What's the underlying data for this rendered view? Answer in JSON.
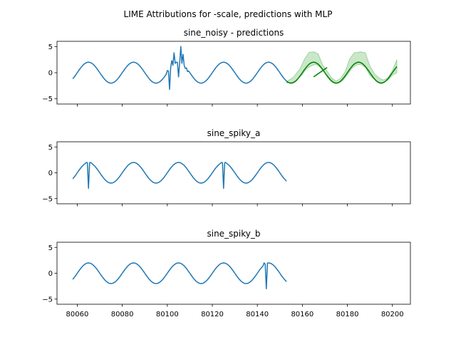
{
  "figure": {
    "suptitle": "LIME Attributions for -scale, predictions with MLP"
  },
  "colors": {
    "history": "#1f77b4",
    "prediction": "#008000",
    "band": "#2ca02c"
  },
  "chart_data": [
    {
      "type": "line",
      "title": "sine_noisy - predictions",
      "xlabel": "",
      "ylabel": "",
      "xlim": [
        80051,
        80208
      ],
      "ylim": [
        -6,
        6
      ],
      "yticks": [
        -5,
        0,
        5
      ],
      "xticks": [
        80060,
        80080,
        80100,
        80120,
        80140,
        80160,
        80180,
        80200
      ],
      "show_x_tick_labels": false,
      "grid": false,
      "series": [
        {
          "role": "history",
          "x_start": 80058,
          "x_end": 80153,
          "amplitude": 2,
          "period": 20,
          "phase_offset_x": 80060,
          "points": [
            [
              80100,
              0.4
            ],
            [
              80101,
              -3.2
            ],
            [
              80102,
              2.3
            ],
            [
              80103,
              3.8
            ],
            [
              80104,
              2.0
            ],
            [
              80105,
              -0.8
            ],
            [
              80106,
              5.0
            ],
            [
              80107,
              3.5
            ],
            [
              80108,
              0.8
            ],
            [
              80109,
              0.2
            ]
          ]
        },
        {
          "role": "prediction",
          "x_start": 80153,
          "x_end": 80202,
          "amplitude": 2,
          "period": 20,
          "phase_offset_x": 80060,
          "extra_segment": [
            [
              80165,
              -0.8
            ],
            [
              80171,
              1.0
            ]
          ]
        },
        {
          "role": "band",
          "x_start": 80153,
          "x_end": 80202,
          "upper": [
            [
              80153,
              -1.7
            ],
            [
              80156,
              -0.9
            ],
            [
              80159,
              0.8
            ],
            [
              80161,
              2.6
            ],
            [
              80163,
              3.9
            ],
            [
              80165,
              4.0
            ],
            [
              80167,
              3.6
            ],
            [
              80169,
              1.5
            ],
            [
              80171,
              0.3
            ],
            [
              80173,
              -1.0
            ],
            [
              80175,
              -1.6
            ],
            [
              80177,
              -1.1
            ],
            [
              80179,
              0.2
            ],
            [
              80181,
              2.6
            ],
            [
              80183,
              3.8
            ],
            [
              80186,
              4.0
            ],
            [
              80188,
              3.8
            ],
            [
              80190,
              1.3
            ],
            [
              80192,
              -0.2
            ],
            [
              80194,
              -1.0
            ],
            [
              80196,
              -1.4
            ],
            [
              80198,
              -1.0
            ],
            [
              80200,
              0.4
            ],
            [
              80202,
              2.5
            ]
          ],
          "lower": [
            [
              80202,
              0.0
            ],
            [
              80200,
              -0.5
            ],
            [
              80198,
              -1.4
            ],
            [
              80196,
              -1.9
            ],
            [
              80194,
              -1.8
            ],
            [
              80192,
              -1.3
            ],
            [
              80190,
              -0.5
            ],
            [
              80188,
              1.0
            ],
            [
              80186,
              1.6
            ],
            [
              80184,
              1.5
            ],
            [
              80182,
              0.8
            ],
            [
              80180,
              -0.4
            ],
            [
              80178,
              -1.5
            ],
            [
              80176,
              -2.0
            ],
            [
              80174,
              -1.8
            ],
            [
              80172,
              -1.0
            ],
            [
              80170,
              0.0
            ],
            [
              80168,
              1.0
            ],
            [
              80166,
              1.6
            ],
            [
              80164,
              1.3
            ],
            [
              80162,
              0.8
            ],
            [
              80160,
              -0.3
            ],
            [
              80158,
              -1.2
            ],
            [
              80156,
              -1.8
            ],
            [
              80153,
              -2.0
            ]
          ]
        }
      ]
    },
    {
      "type": "line",
      "title": "sine_spiky_a",
      "xlabel": "",
      "ylabel": "",
      "xlim": [
        80051,
        80208
      ],
      "ylim": [
        -6,
        6
      ],
      "yticks": [
        -5,
        0,
        5
      ],
      "xticks": [
        80060,
        80080,
        80100,
        80120,
        80140,
        80160,
        80180,
        80200
      ],
      "show_x_tick_labels": false,
      "grid": false,
      "series": [
        {
          "role": "history",
          "x_start": 80058,
          "x_end": 80153,
          "amplitude": 2,
          "period": 20,
          "phase_offset_x": 80060,
          "points": [
            [
              80064,
              2.0
            ],
            [
              80065,
              -3.0
            ],
            [
              80066,
              2.0
            ],
            [
              80124,
              2.0
            ],
            [
              80125,
              -3.0
            ],
            [
              80126,
              2.0
            ]
          ]
        }
      ]
    },
    {
      "type": "line",
      "title": "sine_spiky_b",
      "xlabel": "",
      "ylabel": "",
      "xlim": [
        80051,
        80208
      ],
      "ylim": [
        -6,
        6
      ],
      "yticks": [
        -5,
        0,
        5
      ],
      "xticks": [
        80060,
        80080,
        80100,
        80120,
        80140,
        80160,
        80180,
        80200
      ],
      "xtick_labels": [
        "80060",
        "80080",
        "80100",
        "80120",
        "80140",
        "80160",
        "80180",
        "80200"
      ],
      "show_x_tick_labels": true,
      "grid": false,
      "series": [
        {
          "role": "history",
          "x_start": 80058,
          "x_end": 80153,
          "amplitude": 2,
          "period": 20,
          "phase_offset_x": 80060,
          "points": [
            [
              80143,
              2.0
            ],
            [
              80144,
              -3.0
            ],
            [
              80145,
              2.0
            ]
          ]
        }
      ]
    }
  ]
}
